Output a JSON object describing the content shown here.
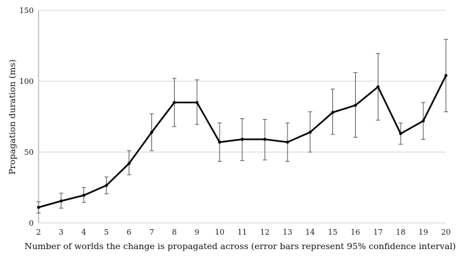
{
  "chart_data": {
    "type": "line",
    "title": "",
    "xlabel": "Number of worlds the change is propagated across (error bars represent 95% confidence interval)",
    "ylabel": "Propagation duration (ms)",
    "ylim": [
      0,
      150
    ],
    "yticks": [
      0,
      50,
      100,
      150
    ],
    "grid": "horizontal",
    "x": [
      2,
      3,
      4,
      5,
      6,
      7,
      8,
      9,
      10,
      11,
      12,
      13,
      14,
      15,
      16,
      17,
      18,
      19,
      20
    ],
    "series": [
      {
        "name": "",
        "values": [
          11,
          15.5,
          19.5,
          26.5,
          42,
          64,
          85,
          85,
          57,
          59,
          59,
          57,
          64,
          78,
          83,
          96,
          63,
          72,
          104
        ],
        "error_low": [
          7,
          10.5,
          14.5,
          20.5,
          34,
          51,
          68,
          69.5,
          43.5,
          44,
          44.5,
          43.5,
          50,
          62.5,
          60.5,
          72.5,
          55.5,
          59,
          78.5
        ],
        "error_high": [
          15,
          21,
          25,
          32.5,
          51,
          77,
          102,
          101,
          70.5,
          73.5,
          73,
          70.5,
          78.5,
          94.5,
          106,
          119.5,
          70.5,
          85,
          129.5
        ]
      }
    ]
  }
}
